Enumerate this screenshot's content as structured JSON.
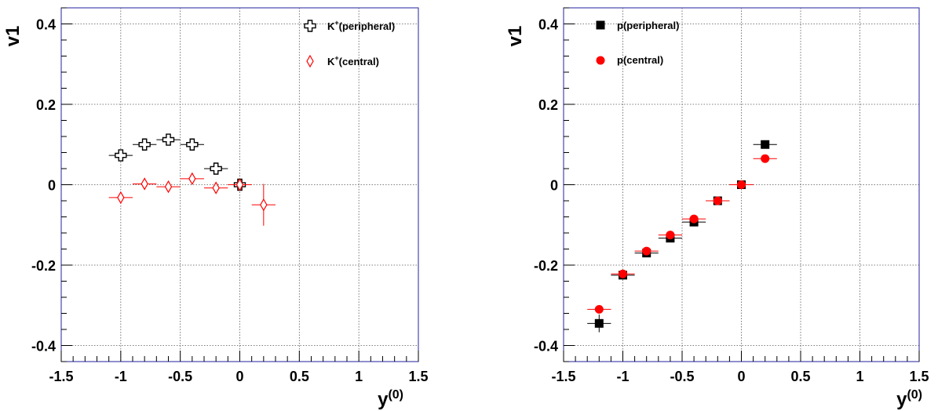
{
  "chart_data": [
    {
      "type": "scatter",
      "xlabel": "y",
      "xlabel_sup": "(0)",
      "ylabel": "v1",
      "xlim": [
        -1.5,
        1.5
      ],
      "ylim": [
        -0.44,
        0.44
      ],
      "xticks": [
        -1.5,
        -1,
        -0.5,
        0,
        0.5,
        1,
        1.5
      ],
      "xtick_labels": [
        "-1.5",
        "-1",
        "-0.5",
        "0",
        "0.5",
        "1",
        "1.5"
      ],
      "yticks": [
        -0.4,
        -0.2,
        0,
        0.2,
        0.4
      ],
      "ytick_labels": [
        "-0.4",
        "-0.2",
        "0",
        "0.2",
        "0.4"
      ],
      "grid": true,
      "legend_position": "top-right",
      "series": [
        {
          "name": "K",
          "name_sup": "+",
          "name_suffix": "(peripheral)",
          "marker": "open-cross",
          "color": "#000000",
          "x": [
            -1.0,
            -0.8,
            -0.6,
            -0.4,
            -0.2,
            0.0
          ],
          "y": [
            0.073,
            0.1,
            0.112,
            0.1,
            0.04,
            0.0
          ],
          "xerr": [
            0.1,
            0.1,
            0.1,
            0.1,
            0.1,
            0.1
          ],
          "yerr": [
            0.012,
            0.008,
            0.01,
            0.008,
            0.006,
            0.01
          ]
        },
        {
          "name": "K",
          "name_sup": "+",
          "name_suffix": "(central)",
          "marker": "open-diamond",
          "color": "#ff0000",
          "x": [
            -1.0,
            -0.8,
            -0.6,
            -0.4,
            -0.2,
            0.0,
            0.2
          ],
          "y": [
            -0.032,
            0.002,
            -0.005,
            0.015,
            -0.008,
            0.0,
            -0.05
          ],
          "xerr": [
            0.1,
            0.1,
            0.1,
            0.1,
            0.1,
            0.1,
            0.1
          ],
          "yerr": [
            0.012,
            0.008,
            0.008,
            0.008,
            0.008,
            0.01,
            0.052
          ]
        }
      ]
    },
    {
      "type": "scatter",
      "xlabel": "y",
      "xlabel_sup": "(0)",
      "ylabel": "v1",
      "xlim": [
        -1.5,
        1.5
      ],
      "ylim": [
        -0.44,
        0.44
      ],
      "xticks": [
        -1.5,
        -1,
        -0.5,
        0,
        0.5,
        1,
        1.5
      ],
      "xtick_labels": [
        "-1.5",
        "-1",
        "-0.5",
        "0",
        "0.5",
        "1",
        "1.5"
      ],
      "yticks": [
        -0.4,
        -0.2,
        0,
        0.2,
        0.4
      ],
      "ytick_labels": [
        "-0.4",
        "-0.2",
        "0",
        "0.2",
        "0.4"
      ],
      "grid": true,
      "legend_position": "top-left",
      "series": [
        {
          "name": "p(peripheral)",
          "marker": "filled-square",
          "color": "#000000",
          "x": [
            -1.2,
            -1.0,
            -0.8,
            -0.6,
            -0.4,
            -0.2,
            0.0,
            0.2
          ],
          "y": [
            -0.345,
            -0.225,
            -0.17,
            -0.133,
            -0.093,
            -0.04,
            0.0,
            0.1
          ],
          "xerr": [
            0.1,
            0.1,
            0.1,
            0.1,
            0.1,
            0.1,
            0.1,
            0.1
          ],
          "yerr": [
            0.022,
            0.006,
            0.005,
            0.005,
            0.005,
            0.004,
            0.004,
            0.006
          ]
        },
        {
          "name": "p(central)",
          "marker": "filled-circle",
          "color": "#ff0000",
          "x": [
            -1.2,
            -1.0,
            -0.8,
            -0.6,
            -0.4,
            -0.2,
            0.0,
            0.2
          ],
          "y": [
            -0.31,
            -0.222,
            -0.165,
            -0.125,
            -0.085,
            -0.04,
            0.0,
            0.065
          ],
          "xerr": [
            0.1,
            0.1,
            0.1,
            0.1,
            0.1,
            0.1,
            0.1,
            0.1
          ],
          "yerr": [
            0.008,
            0.004,
            0.004,
            0.004,
            0.004,
            0.003,
            0.003,
            0.004
          ]
        }
      ]
    }
  ]
}
